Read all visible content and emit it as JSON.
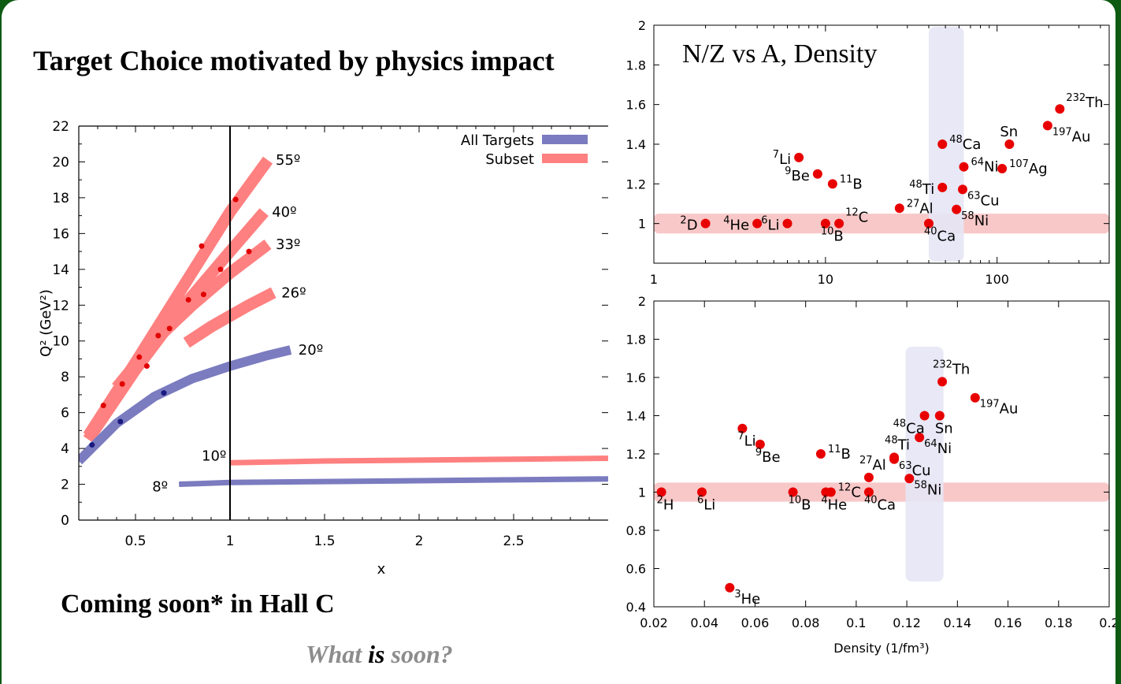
{
  "slide": {
    "title": "Target Choice motivated by physics impact",
    "footer_left": "Coming soon* in Hall C",
    "footer_question": {
      "part1": "What ",
      "part2": "is",
      "part3": " soon?"
    },
    "right_title": "N/Z vs A, Density"
  },
  "colors": {
    "blue_band": "#7b7bc0",
    "blue_dark": "#1a1a80",
    "red_band": "#ff8080",
    "red_dark": "#e00000",
    "dot": "#e80000",
    "vband": "#e6e6f5",
    "hband": "#f8c8c8"
  },
  "chart_data": [
    {
      "id": "q2-vs-x",
      "type": "line",
      "xlabel": "x",
      "ylabel": "Q² (GeV²)",
      "xlim": [
        0.2,
        3.0
      ],
      "ylim": [
        0,
        22
      ],
      "xticks": [
        0.5,
        1,
        1.5,
        2,
        2.5
      ],
      "yticks": [
        0,
        2,
        4,
        6,
        8,
        10,
        12,
        14,
        16,
        18,
        20,
        22
      ],
      "vline_x": 1,
      "legend": {
        "placement": "top-right",
        "entries": [
          {
            "name": "All Targets",
            "color": "#7b7bc0"
          },
          {
            "name": "Subset",
            "color": "#ff8080"
          }
        ]
      },
      "series": [
        {
          "name": "55º",
          "group": "Subset",
          "x": [
            0.25,
            0.5,
            0.75,
            1.0,
            1.2
          ],
          "y": [
            4.7,
            8.8,
            13.0,
            17.2,
            20.1
          ],
          "label": "55º"
        },
        {
          "name": "40º",
          "group": "Subset",
          "x": [
            0.25,
            0.5,
            0.75,
            1.0,
            1.18
          ],
          "y": [
            4.5,
            8.4,
            11.9,
            15.0,
            17.2
          ],
          "label": "40º"
        },
        {
          "name": "33º",
          "group": "Subset",
          "x": [
            0.4,
            0.6,
            0.8,
            1.0,
            1.2
          ],
          "y": [
            7.4,
            10.0,
            12.0,
            13.8,
            15.4
          ],
          "label": "33º"
        },
        {
          "name": "26º",
          "group": "Subset",
          "x": [
            0.77,
            0.9,
            1.0,
            1.1,
            1.23
          ],
          "y": [
            9.9,
            10.8,
            11.4,
            12.0,
            12.7
          ],
          "label": "26º"
        },
        {
          "name": "20º",
          "group": "All Targets",
          "x": [
            0.2,
            0.4,
            0.6,
            0.8,
            1.0,
            1.2,
            1.32
          ],
          "y": [
            3.3,
            5.4,
            6.9,
            7.9,
            8.6,
            9.2,
            9.5
          ],
          "label": "20º"
        },
        {
          "name": "10º",
          "group": "Subset",
          "x": [
            1.0,
            1.5,
            2.0,
            2.5,
            3.0
          ],
          "y": [
            3.2,
            3.3,
            3.35,
            3.4,
            3.45
          ],
          "label": "10º"
        },
        {
          "name": "8º",
          "group": "All Targets",
          "x": [
            0.73,
            1.0,
            1.5,
            2.0,
            2.5,
            3.0
          ],
          "y": [
            2.0,
            2.1,
            2.15,
            2.2,
            2.25,
            2.3
          ],
          "label": "8º"
        }
      ]
    },
    {
      "id": "nz-vs-a",
      "type": "scatter",
      "xlabel": "",
      "ylabel": "",
      "xscale": "log",
      "xlim": [
        1,
        450
      ],
      "ylim": [
        0.8,
        2.0
      ],
      "xticks": [
        1,
        10,
        100
      ],
      "xticklabels": [
        "1",
        "10",
        "100"
      ],
      "yticks": [
        1,
        1.2,
        1.4,
        1.6,
        1.8,
        2
      ],
      "yticklabels": [
        "1",
        "1.2",
        "1.4",
        "1.6",
        "1.8",
        "2"
      ],
      "hband": [
        0.95,
        1.05
      ],
      "vband": [
        40,
        64
      ],
      "points": [
        {
          "sup": "2",
          "el": "D",
          "x": 2,
          "y": 1.0,
          "pos": "left"
        },
        {
          "sup": "4",
          "el": "He",
          "x": 4,
          "y": 1.0,
          "pos": "left"
        },
        {
          "sup": "6",
          "el": "Li",
          "x": 6,
          "y": 1.0,
          "pos": "left"
        },
        {
          "sup": "10",
          "el": "B",
          "x": 10,
          "y": 1.0,
          "pos": "below"
        },
        {
          "sup": "12",
          "el": "C",
          "x": 12,
          "y": 1.0,
          "pos": "above-right"
        },
        {
          "sup": "7",
          "el": "Li",
          "x": 7,
          "y": 1.333,
          "pos": "left"
        },
        {
          "sup": "9",
          "el": "Be",
          "x": 9,
          "y": 1.25,
          "pos": "left"
        },
        {
          "sup": "11",
          "el": "B",
          "x": 11,
          "y": 1.2,
          "pos": "right"
        },
        {
          "sup": "27",
          "el": "Al",
          "x": 27,
          "y": 1.077,
          "pos": "right"
        },
        {
          "sup": "40",
          "el": "Ca",
          "x": 40,
          "y": 1.0,
          "pos": "below"
        },
        {
          "sup": "48",
          "el": "Ca",
          "x": 48,
          "y": 1.4,
          "pos": "right"
        },
        {
          "sup": "48",
          "el": "Ti",
          "x": 48,
          "y": 1.182,
          "pos": "left"
        },
        {
          "sup": "58",
          "el": "Ni",
          "x": 58,
          "y": 1.071,
          "pos": "below-right"
        },
        {
          "sup": "63",
          "el": "Cu",
          "x": 63,
          "y": 1.172,
          "pos": "below-right"
        },
        {
          "sup": "64",
          "el": "Ni",
          "x": 64,
          "y": 1.286,
          "pos": "right"
        },
        {
          "sup": "107",
          "el": "Ag",
          "x": 107,
          "y": 1.277,
          "pos": "right"
        },
        {
          "sup": "",
          "el": "Sn",
          "x": 118,
          "y": 1.4,
          "pos": "above"
        },
        {
          "sup": "197",
          "el": "Au",
          "x": 197,
          "y": 1.494,
          "pos": "below-right"
        },
        {
          "sup": "232",
          "el": "Th",
          "x": 232,
          "y": 1.578,
          "pos": "above-right"
        }
      ]
    },
    {
      "id": "nz-vs-density",
      "type": "scatter",
      "xlabel": "Density (1/fm³)",
      "ylabel": "",
      "xlim": [
        0.02,
        0.2
      ],
      "ylim": [
        0.4,
        2.0
      ],
      "xticks": [
        0.02,
        0.04,
        0.06,
        0.08,
        0.1,
        0.12,
        0.14,
        0.16,
        0.18,
        0.2
      ],
      "xticklabels": [
        "0.02",
        "0.04",
        "0.06",
        "0.08",
        "0.1",
        "0.12",
        "0.14",
        "0.16",
        "0.18",
        "0.2"
      ],
      "yticks": [
        0.4,
        0.6,
        0.8,
        1,
        1.2,
        1.4,
        1.6,
        1.8,
        2
      ],
      "yticklabels": [
        "0.4",
        "0.6",
        "0.8",
        "1",
        "1.2",
        "1.4",
        "1.6",
        "1.8",
        "2"
      ],
      "hband": [
        0.95,
        1.05
      ],
      "vband": [
        0.1195,
        0.1345
      ],
      "points": [
        {
          "sup": "2",
          "el": "H",
          "x": 0.023,
          "y": 1.0,
          "pos": "below"
        },
        {
          "sup": "6",
          "el": "Li",
          "x": 0.039,
          "y": 1.0,
          "pos": "below"
        },
        {
          "sup": "3",
          "el": "He",
          "x": 0.05,
          "y": 0.5,
          "pos": "below-right"
        },
        {
          "sup": "7",
          "el": "Li",
          "x": 0.055,
          "y": 1.333,
          "pos": "below"
        },
        {
          "sup": "9",
          "el": "Be",
          "x": 0.062,
          "y": 1.25,
          "pos": "below"
        },
        {
          "sup": "10",
          "el": "B",
          "x": 0.075,
          "y": 1.0,
          "pos": "below"
        },
        {
          "sup": "11",
          "el": "B",
          "x": 0.086,
          "y": 1.2,
          "pos": "right"
        },
        {
          "sup": "4",
          "el": "He",
          "x": 0.088,
          "y": 1.0,
          "pos": "below"
        },
        {
          "sup": "12",
          "el": "C",
          "x": 0.09,
          "y": 1.0,
          "pos": "right"
        },
        {
          "sup": "27",
          "el": "Al",
          "x": 0.105,
          "y": 1.077,
          "pos": "above"
        },
        {
          "sup": "40",
          "el": "Ca",
          "x": 0.105,
          "y": 1.0,
          "pos": "below"
        },
        {
          "sup": "48",
          "el": "Ti",
          "x": 0.115,
          "y": 1.182,
          "pos": "above"
        },
        {
          "sup": "63",
          "el": "Cu",
          "x": 0.115,
          "y": 1.172,
          "pos": "below-right"
        },
        {
          "sup": "58",
          "el": "Ni",
          "x": 0.121,
          "y": 1.071,
          "pos": "below-right"
        },
        {
          "sup": "64",
          "el": "Ni",
          "x": 0.125,
          "y": 1.286,
          "pos": "below-right"
        },
        {
          "sup": "48",
          "el": "Ca",
          "x": 0.127,
          "y": 1.4,
          "pos": "below-left"
        },
        {
          "sup": "",
          "el": "Sn",
          "x": 0.133,
          "y": 1.4,
          "pos": "below"
        },
        {
          "sup": "232",
          "el": "Th",
          "x": 0.134,
          "y": 1.578,
          "pos": "above"
        },
        {
          "sup": "197",
          "el": "Au",
          "x": 0.147,
          "y": 1.494,
          "pos": "below-right"
        }
      ]
    }
  ]
}
